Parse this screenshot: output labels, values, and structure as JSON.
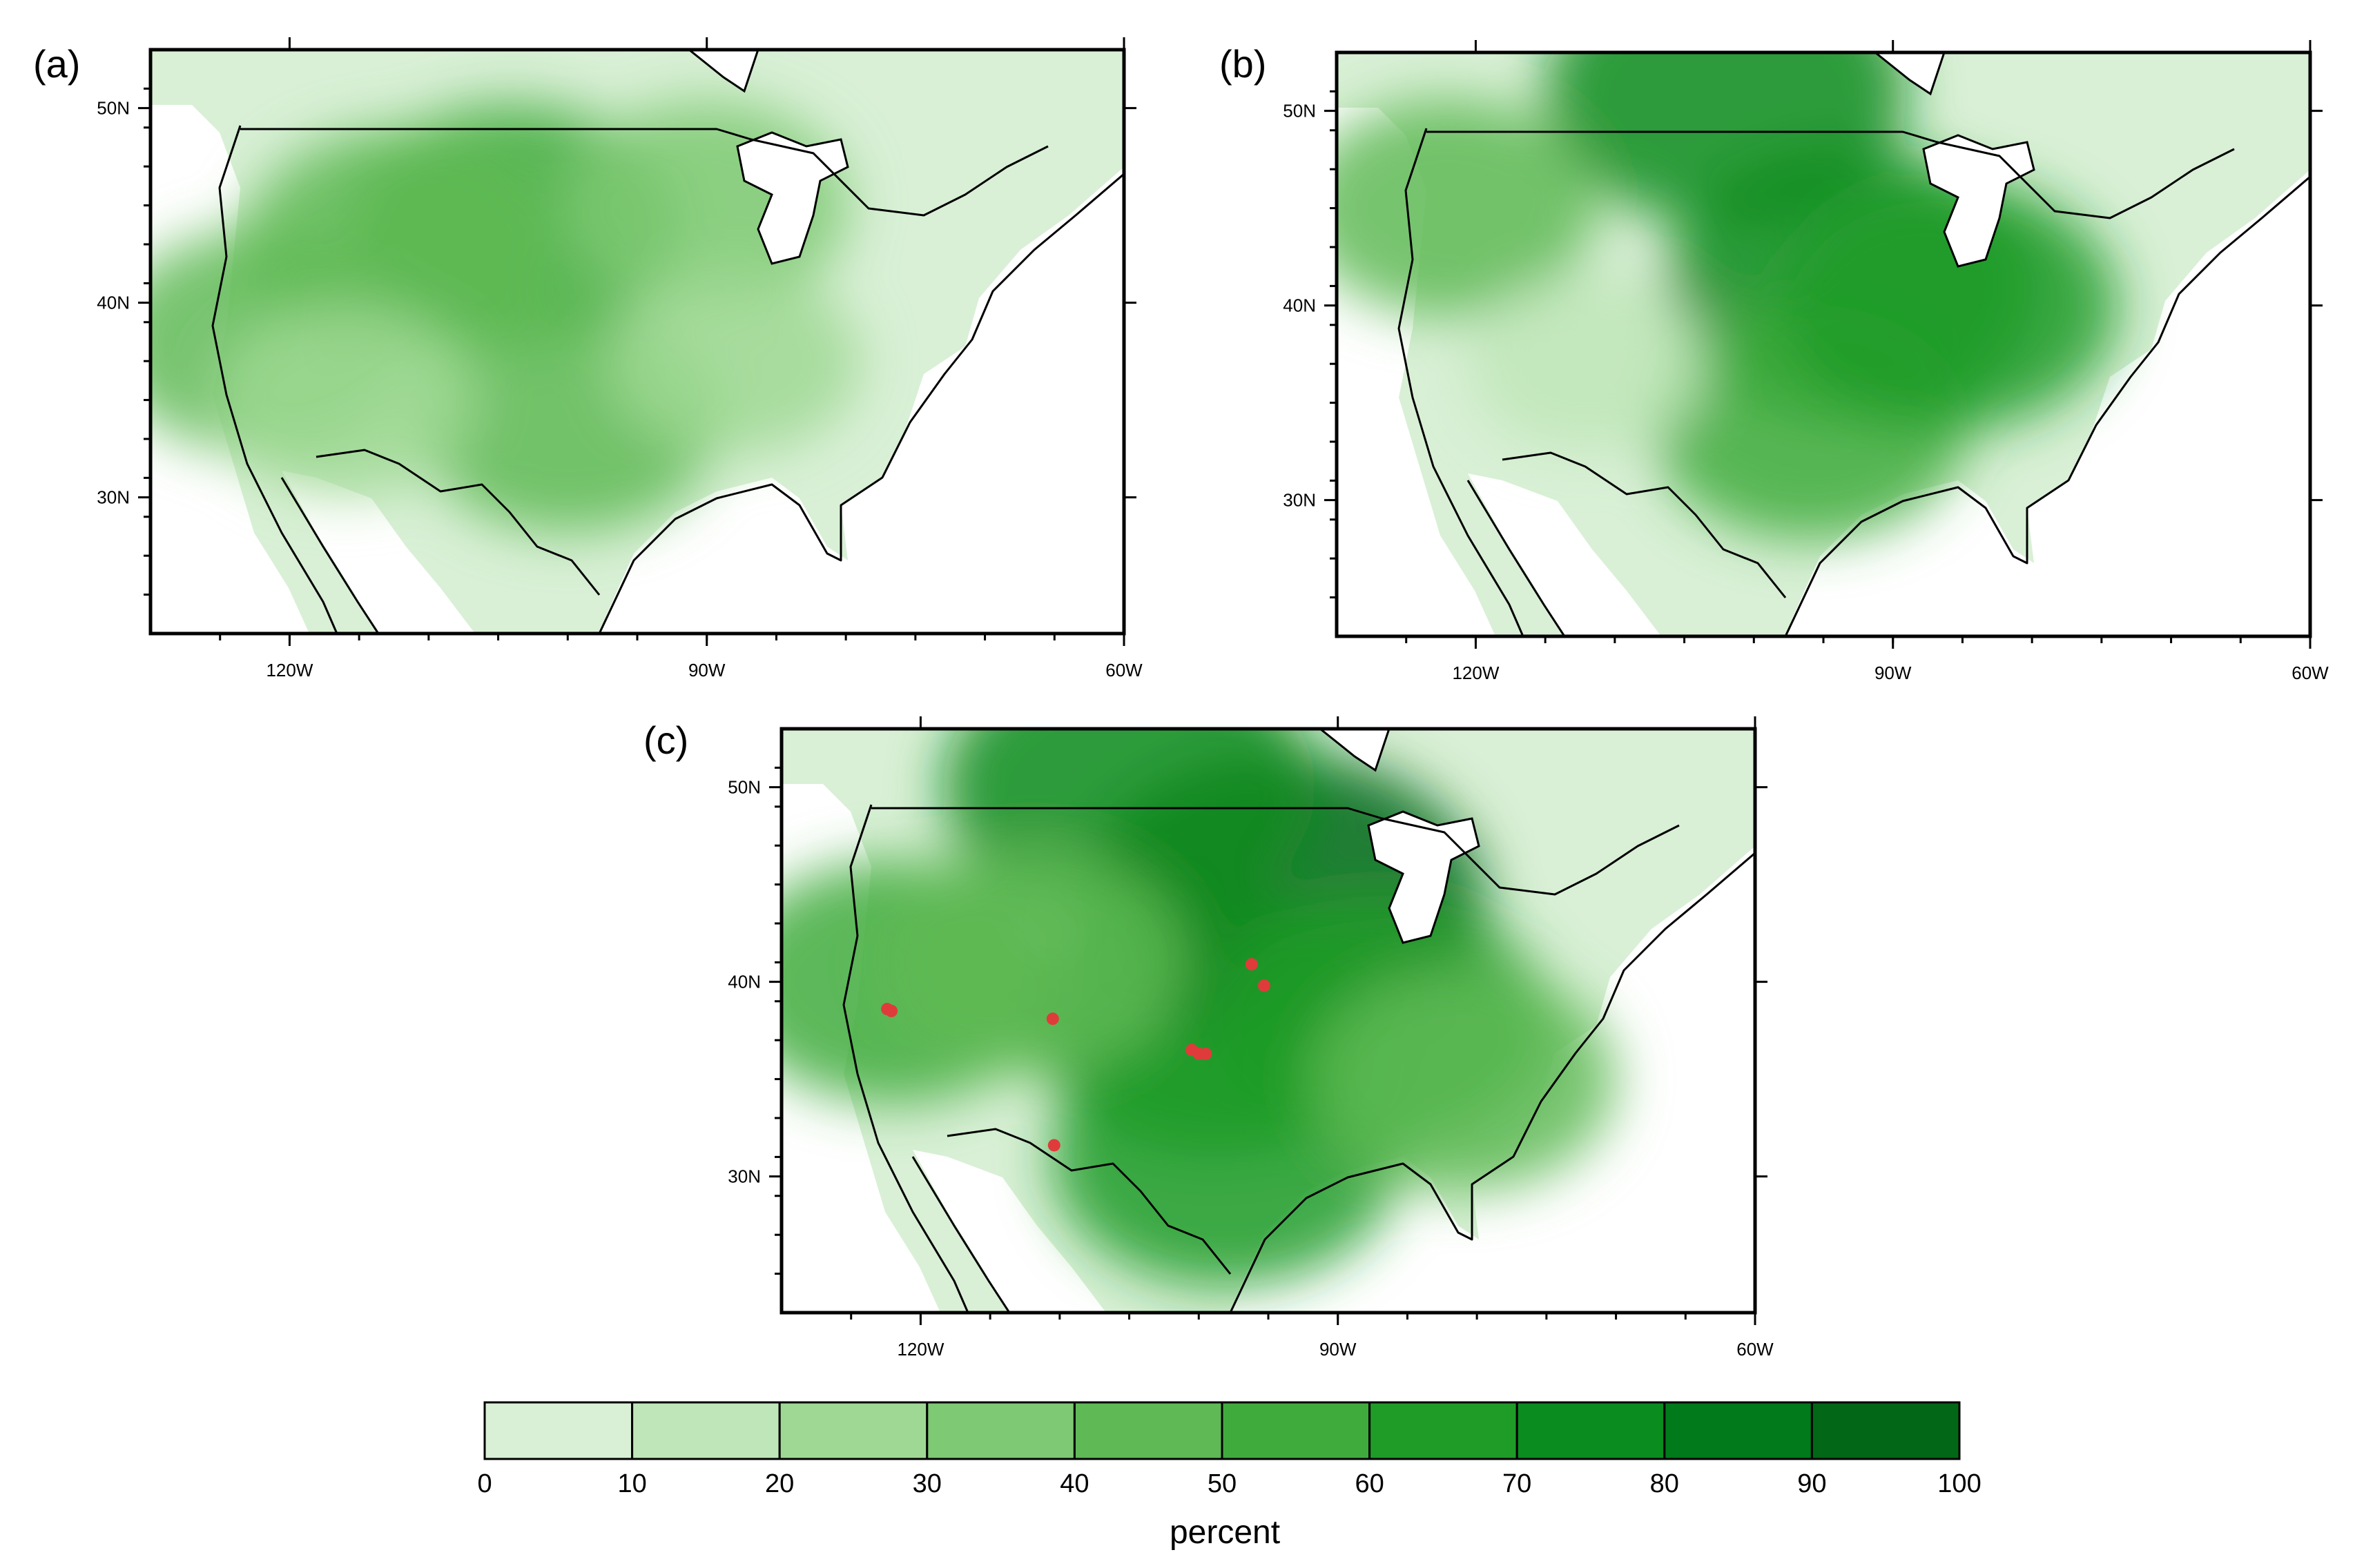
{
  "panels": [
    {
      "id": "a",
      "label": "(a)",
      "lat_labels": [
        "50N",
        "40N",
        "30N"
      ],
      "lon_labels": [
        "120W",
        "90W",
        "60W"
      ],
      "blobs": [
        {
          "lon": -104,
          "lat": 44,
          "value": 55
        },
        {
          "lon": -112,
          "lat": 43,
          "value": 48
        },
        {
          "lon": -100,
          "lat": 34,
          "value": 45
        },
        {
          "lon": -122,
          "lat": 38,
          "value": 45
        },
        {
          "lon": -90,
          "lat": 45,
          "value": 35
        },
        {
          "lon": -116,
          "lat": 35,
          "value": 25
        },
        {
          "lon": -88,
          "lat": 37,
          "value": 20
        }
      ],
      "markers": []
    },
    {
      "id": "b",
      "label": "(b)",
      "lat_labels": [
        "50N",
        "40N",
        "30N"
      ],
      "lon_labels": [
        "120W",
        "90W",
        "60W"
      ],
      "blobs": [
        {
          "lon": -102,
          "lat": 51,
          "value": 70
        },
        {
          "lon": -93,
          "lat": 41,
          "value": 75
        },
        {
          "lon": -96,
          "lat": 34,
          "value": 50
        },
        {
          "lon": -86,
          "lat": 40,
          "value": 60
        },
        {
          "lon": -122,
          "lat": 45,
          "value": 40
        },
        {
          "lon": -112,
          "lat": 37,
          "value": 15
        }
      ],
      "markers": []
    },
    {
      "id": "c",
      "label": "(c)",
      "lat_labels": [
        "50N",
        "40N",
        "30N"
      ],
      "lon_labels": [
        "120W",
        "90W",
        "60W"
      ],
      "blobs": [
        {
          "lon": -94,
          "lat": 44,
          "value": 90
        },
        {
          "lon": -105,
          "lat": 50,
          "value": 75
        },
        {
          "lon": -99,
          "lat": 38,
          "value": 70
        },
        {
          "lon": -98,
          "lat": 31,
          "value": 65
        },
        {
          "lon": -87,
          "lat": 38,
          "value": 60
        },
        {
          "lon": -122,
          "lat": 40,
          "value": 55
        },
        {
          "lon": -112,
          "lat": 41,
          "value": 45
        },
        {
          "lon": -81,
          "lat": 35,
          "value": 45
        }
      ],
      "markers": [
        {
          "lon": -122.4,
          "lat": 38.6
        },
        {
          "lon": -122.1,
          "lat": 38.5
        },
        {
          "lon": -110.5,
          "lat": 38.1
        },
        {
          "lon": -100.5,
          "lat": 36.5
        },
        {
          "lon": -100.0,
          "lat": 36.3
        },
        {
          "lon": -99.5,
          "lat": 36.3
        },
        {
          "lon": -96.2,
          "lat": 40.9
        },
        {
          "lon": -95.3,
          "lat": 39.8
        },
        {
          "lon": -110.4,
          "lat": 31.6
        }
      ]
    }
  ],
  "colorbar": {
    "title": "percent",
    "ticks": [
      "0",
      "10",
      "20",
      "30",
      "40",
      "50",
      "60",
      "70",
      "80",
      "90",
      "100"
    ],
    "colors": [
      "#d9f0d6",
      "#bfe6b8",
      "#9fd894",
      "#7ec973",
      "#5fba55",
      "#40ab3d",
      "#1f9c28",
      "#0a8c1f",
      "#007a1a",
      "#026716"
    ]
  },
  "colors": {
    "marker": "#e03b3b",
    "ocean": "#ffffff",
    "base_land": "#d9f0d6"
  }
}
